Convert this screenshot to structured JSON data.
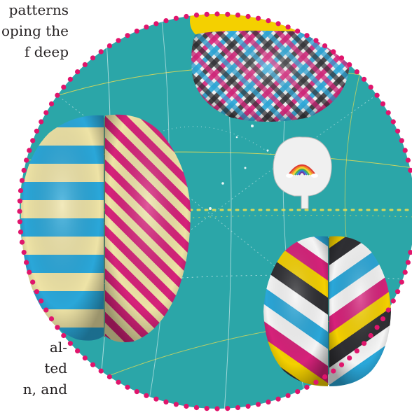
{
  "text_fragments": {
    "top": [
      "patterns",
      "oping the",
      "f deep"
    ],
    "bottom": [
      "al-",
      "ted",
      "n, and"
    ]
  },
  "palette": {
    "teal": "#2ba6a8",
    "yellow": "#f4e04d",
    "cream": "#eee3a6",
    "magenta": "#d6227a",
    "cyan": "#2aa7d9",
    "dark": "#2f2f33",
    "white": "#f5f5f5",
    "dot_border": "#e0156c"
  },
  "illustration": {
    "shapes": [
      "large-striped-brain",
      "checkered-brain",
      "small-rainbow-brain",
      "chevron-striped-brain"
    ],
    "rainbow_colors": [
      "#e03c31",
      "#f08a24",
      "#f6d32b",
      "#4caf50",
      "#2a7fd4",
      "#6c3aa8"
    ]
  }
}
